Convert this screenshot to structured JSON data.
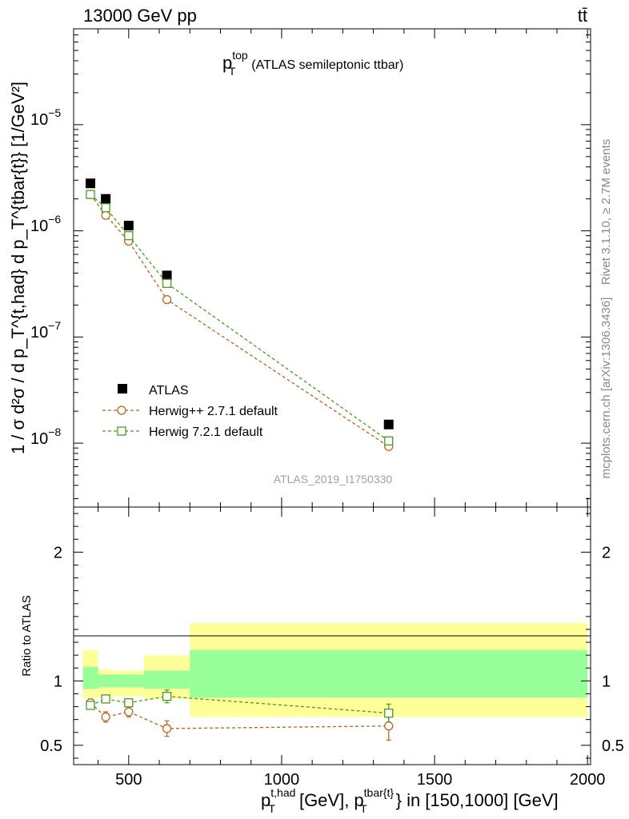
{
  "header": {
    "energy_label": "13000 GeV pp",
    "process_label": "tt̄"
  },
  "side_labels": {
    "rivet": "Rivet 3.1.10, ≥ 2.7M events",
    "mcplots": "mcplots.cern.ch [arXiv:1306.3436]"
  },
  "analysis_id": "ATLAS_2019_I1750330",
  "chart_data": [
    {
      "type": "scatter",
      "panel": "main",
      "title_main": "p",
      "title_sup": "top",
      "title_sub": "T",
      "title_rest": "(ATLAS semileptonic ttbar)",
      "ylabel": "1 / σ d²σ / d p_T^{t,had} d p_T^{tbar{t}} [1/GeV²]",
      "yscale": "log",
      "ylim": [
        2.5e-09,
        8e-05
      ],
      "xlim": [
        320,
        2010
      ],
      "ytick_labels": {
        "e5": "10",
        "e6": "10",
        "e7": "10",
        "e8": "10",
        "exp5": "−5",
        "exp6": "−6",
        "exp7": "−7",
        "exp8": "−8"
      },
      "legend_position": "bottom-left",
      "x": [
        375,
        425,
        500,
        625,
        1350
      ],
      "series": [
        {
          "name": "ATLAS",
          "color": "#000000",
          "marker": "filled-square",
          "values": [
            2.8e-06,
            2e-06,
            1.12e-06,
            3.8e-07,
            1.5e-08
          ]
        },
        {
          "name": "Herwig++ 2.7.1 default",
          "color": "#b8641a",
          "marker": "open-circle",
          "values": [
            2.2e-06,
            1.4e-06,
            8e-07,
            2.25e-07,
            9.3e-09
          ]
        },
        {
          "name": "Herwig 7.2.1 default",
          "color": "#4a9a1c",
          "marker": "open-square",
          "values": [
            2.2e-06,
            1.65e-06,
            9e-07,
            3.2e-07,
            1.05e-08
          ]
        }
      ]
    },
    {
      "type": "scatter",
      "panel": "ratio",
      "ylabel": "Ratio to ATLAS",
      "xlabel_main": "p",
      "xlabel_sup1": "t,had",
      "xlabel_sub1": "T",
      "xlabel_mid": "[GeV], p",
      "xlabel_sup2": "tbar{t}",
      "xlabel_sub2": "T",
      "xlabel_rest": "} in [150,1000] [GeV]",
      "ylim": [
        0.35,
        2.35
      ],
      "xlim": [
        320,
        2010
      ],
      "xticks": [
        500,
        1000,
        1500,
        2000
      ],
      "xtick_labels": [
        "500",
        "1000",
        "1500",
        "2000"
      ],
      "yticks": [
        0.5,
        1,
        2
      ],
      "ytick_labels": [
        "0.5",
        "1",
        "2"
      ],
      "bands": [
        {
          "x0": 350,
          "x1": 400,
          "inner": [
            0.94,
            1.11
          ],
          "outer": [
            0.87,
            1.24
          ]
        },
        {
          "x0": 400,
          "x1": 450,
          "inner": [
            0.95,
            1.05
          ],
          "outer": [
            0.87,
            1.09
          ]
        },
        {
          "x0": 450,
          "x1": 550,
          "inner": [
            0.95,
            1.05
          ],
          "outer": [
            0.88,
            1.08
          ]
        },
        {
          "x0": 550,
          "x1": 700,
          "inner": [
            0.94,
            1.08
          ],
          "outer": [
            0.86,
            1.2
          ]
        },
        {
          "x0": 700,
          "x1": 2000,
          "inner": [
            0.87,
            1.24
          ],
          "outer": [
            0.72,
            1.45
          ]
        }
      ],
      "x": [
        375,
        425,
        500,
        625,
        1350
      ],
      "series": [
        {
          "name": "Herwig++ 2.7.1 default",
          "color": "#b8641a",
          "marker": "open-circle",
          "values": [
            0.83,
            0.72,
            0.76,
            0.63,
            0.65
          ],
          "errors": [
            0.03,
            0.04,
            0.04,
            0.06,
            0.11
          ]
        },
        {
          "name": "Herwig 7.2.1 default",
          "color": "#4a9a1c",
          "marker": "open-square",
          "values": [
            0.81,
            0.86,
            0.83,
            0.88,
            0.75
          ],
          "errors": [
            0.02,
            0.03,
            0.03,
            0.05,
            0.07
          ]
        }
      ]
    }
  ]
}
